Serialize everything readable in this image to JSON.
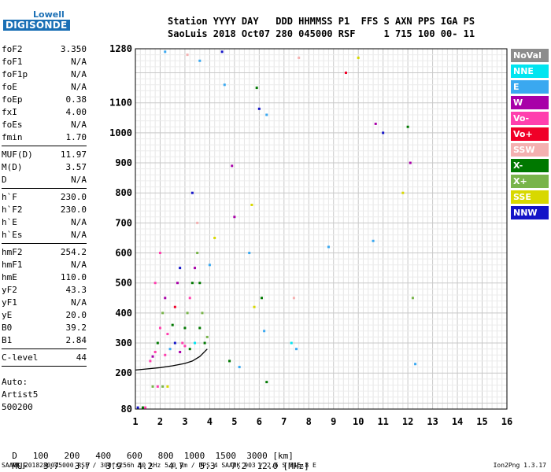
{
  "logo": {
    "top": "Lowell",
    "main": "DIGISONDE"
  },
  "header": {
    "line1": "Station YYYY DAY   DDD HHMMSS P1  FFS S AXN PPS IGA PS",
    "line2": "SaoLuis 2018 Oct07 280 045000 RSF     1 715 100 00- 11"
  },
  "params": [
    [
      [
        "foF2",
        "3.350"
      ],
      [
        "foF1",
        "N/A"
      ],
      [
        "foF1p",
        "N/A"
      ],
      [
        "foE",
        "N/A"
      ],
      [
        "foEp",
        "0.38"
      ],
      [
        "fxI",
        "4.00"
      ],
      [
        "foEs",
        "N/A"
      ],
      [
        "fmin",
        "1.70"
      ]
    ],
    [
      [
        "MUF(D)",
        "11.97"
      ],
      [
        "M(D)",
        "3.57"
      ],
      [
        "D",
        "N/A"
      ]
    ],
    [
      [
        "h`F",
        "230.0"
      ],
      [
        "h`F2",
        "230.0"
      ],
      [
        "h`E",
        "N/A"
      ],
      [
        "h`Es",
        "N/A"
      ]
    ],
    [
      [
        "hmF2",
        "254.2"
      ],
      [
        "hmF1",
        "N/A"
      ],
      [
        "hmE",
        "110.0"
      ],
      [
        "yF2",
        "43.3"
      ],
      [
        "yF1",
        "N/A"
      ],
      [
        "yE",
        "20.0"
      ],
      [
        "B0",
        "39.2"
      ],
      [
        "B1",
        "2.84"
      ]
    ],
    [
      [
        "C-level",
        "44"
      ]
    ]
  ],
  "extra": [
    "Auto:",
    "Artist5",
    "500200"
  ],
  "legend": [
    {
      "label": "NoVal",
      "color": "#8c8c8c"
    },
    {
      "label": "NNE",
      "color": "#00e5f0"
    },
    {
      "label": "E",
      "color": "#3aa8f0"
    },
    {
      "label": "W",
      "color": "#a800a8"
    },
    {
      "label": "Vo-",
      "color": "#ff3fae"
    },
    {
      "label": "Vo+",
      "color": "#f00028"
    },
    {
      "label": "SSW",
      "color": "#f4b0b0"
    },
    {
      "label": "X-",
      "color": "#007800"
    },
    {
      "label": "X+",
      "color": "#78b44a"
    },
    {
      "label": "SSE",
      "color": "#d8d800"
    },
    {
      "label": "NNW",
      "color": "#1414c8"
    }
  ],
  "muf_table": {
    "d_label": "D",
    "d_values": [
      "100",
      "200",
      "400",
      "600",
      "800",
      "1000",
      "1500",
      "3000"
    ],
    "d_unit": "[km]",
    "m_label": "MUF",
    "m_values": [
      "3.7",
      "3.7",
      "3.9",
      "4.2",
      "4.7",
      "5.3",
      "7.2",
      "12.0"
    ],
    "m_unit": "[MHz]"
  },
  "footer": {
    "left": "SAA0K_2018280045000.RSF / 300fx256h 50 kHz 5.0 km / DPS-4 SAA0K 903 / 2.6 S 315.8 E",
    "right": "Ion2Png 1.3.17"
  },
  "chart_data": {
    "type": "scatter",
    "title": "",
    "xlabel": "",
    "ylabel": "",
    "xlim": [
      1,
      16
    ],
    "ylim": [
      80,
      1280
    ],
    "x_ticks": [
      1,
      2,
      3,
      4,
      5,
      6,
      7,
      8,
      9,
      10,
      11,
      12,
      13,
      14,
      15,
      16
    ],
    "y_ticks": [
      80,
      200,
      300,
      400,
      500,
      600,
      700,
      800,
      900,
      1000,
      1100,
      1280
    ],
    "grid": true,
    "legend_placement": "right",
    "trace_curve": [
      [
        1.0,
        210
      ],
      [
        1.5,
        214
      ],
      [
        2.0,
        218
      ],
      [
        2.5,
        224
      ],
      [
        3.0,
        232
      ],
      [
        3.3,
        240
      ],
      [
        3.6,
        255
      ],
      [
        3.9,
        280
      ]
    ],
    "points": [
      [
        1.7,
        155,
        "X+"
      ],
      [
        1.9,
        155,
        "Vo-"
      ],
      [
        2.1,
        155,
        "X+"
      ],
      [
        2.3,
        155,
        "SSE"
      ],
      [
        1.3,
        85,
        "X-"
      ],
      [
        1.4,
        85,
        "Vo-"
      ],
      [
        1.1,
        85,
        "NNW"
      ],
      [
        1.6,
        240,
        "Vo-"
      ],
      [
        1.7,
        255,
        "W"
      ],
      [
        1.8,
        270,
        "Vo-"
      ],
      [
        1.9,
        300,
        "X-"
      ],
      [
        2.0,
        350,
        "Vo-"
      ],
      [
        2.1,
        400,
        "X+"
      ],
      [
        2.2,
        450,
        "W"
      ],
      [
        2.3,
        330,
        "Vo-"
      ],
      [
        2.4,
        280,
        "E"
      ],
      [
        2.5,
        360,
        "X-"
      ],
      [
        2.6,
        420,
        "Vo+"
      ],
      [
        2.7,
        500,
        "W"
      ],
      [
        2.8,
        550,
        "NNW"
      ],
      [
        2.9,
        300,
        "Vo-"
      ],
      [
        3.0,
        350,
        "X-"
      ],
      [
        3.1,
        400,
        "X+"
      ],
      [
        3.2,
        450,
        "Vo-"
      ],
      [
        3.3,
        500,
        "X-"
      ],
      [
        3.4,
        550,
        "W"
      ],
      [
        3.5,
        600,
        "X+"
      ],
      [
        3.6,
        350,
        "X-"
      ],
      [
        3.7,
        400,
        "X+"
      ],
      [
        3.8,
        300,
        "X-"
      ],
      [
        3.9,
        320,
        "X+"
      ],
      [
        3.5,
        700,
        "SSW"
      ],
      [
        3.3,
        800,
        "NNW"
      ],
      [
        2.0,
        600,
        "Vo-"
      ],
      [
        1.8,
        500,
        "Vo-"
      ],
      [
        2.6,
        300,
        "NNW"
      ],
      [
        3.0,
        290,
        "Vo-"
      ],
      [
        3.2,
        280,
        "X-"
      ],
      [
        2.2,
        260,
        "Vo-"
      ],
      [
        2.8,
        270,
        "W"
      ],
      [
        3.4,
        300,
        "NNE"
      ],
      [
        3.6,
        500,
        "X-"
      ],
      [
        4.0,
        560,
        "E"
      ],
      [
        4.2,
        650,
        "SSE"
      ],
      [
        4.5,
        1270,
        "NNW"
      ],
      [
        3.6,
        1240,
        "E"
      ],
      [
        4.8,
        240,
        "X-"
      ],
      [
        5.2,
        220,
        "E"
      ],
      [
        5.6,
        600,
        "E"
      ],
      [
        5.9,
        1150,
        "X-"
      ],
      [
        6.0,
        1080,
        "NNW"
      ],
      [
        6.3,
        1060,
        "E"
      ],
      [
        6.1,
        450,
        "X-"
      ],
      [
        5.8,
        420,
        "SSE"
      ],
      [
        6.2,
        340,
        "E"
      ],
      [
        6.3,
        170,
        "X-"
      ],
      [
        7.4,
        450,
        "SSW"
      ],
      [
        7.6,
        1250,
        "SSW"
      ],
      [
        8.8,
        620,
        "E"
      ],
      [
        9.5,
        1200,
        "Vo+"
      ],
      [
        10.0,
        1250,
        "SSE"
      ],
      [
        10.7,
        1030,
        "W"
      ],
      [
        11.0,
        1000,
        "NNW"
      ],
      [
        11.8,
        800,
        "SSE"
      ],
      [
        12.0,
        1020,
        "X-"
      ],
      [
        12.1,
        900,
        "W"
      ],
      [
        12.2,
        450,
        "X+"
      ],
      [
        12.3,
        230,
        "E"
      ],
      [
        10.6,
        640,
        "E"
      ],
      [
        2.2,
        1270,
        "E"
      ],
      [
        3.1,
        1260,
        "SSW"
      ],
      [
        4.6,
        1160,
        "E"
      ],
      [
        5.0,
        720,
        "W"
      ],
      [
        4.9,
        890,
        "W"
      ],
      [
        5.7,
        760,
        "SSE"
      ],
      [
        7.3,
        300,
        "NNE"
      ],
      [
        7.5,
        280,
        "E"
      ]
    ]
  }
}
